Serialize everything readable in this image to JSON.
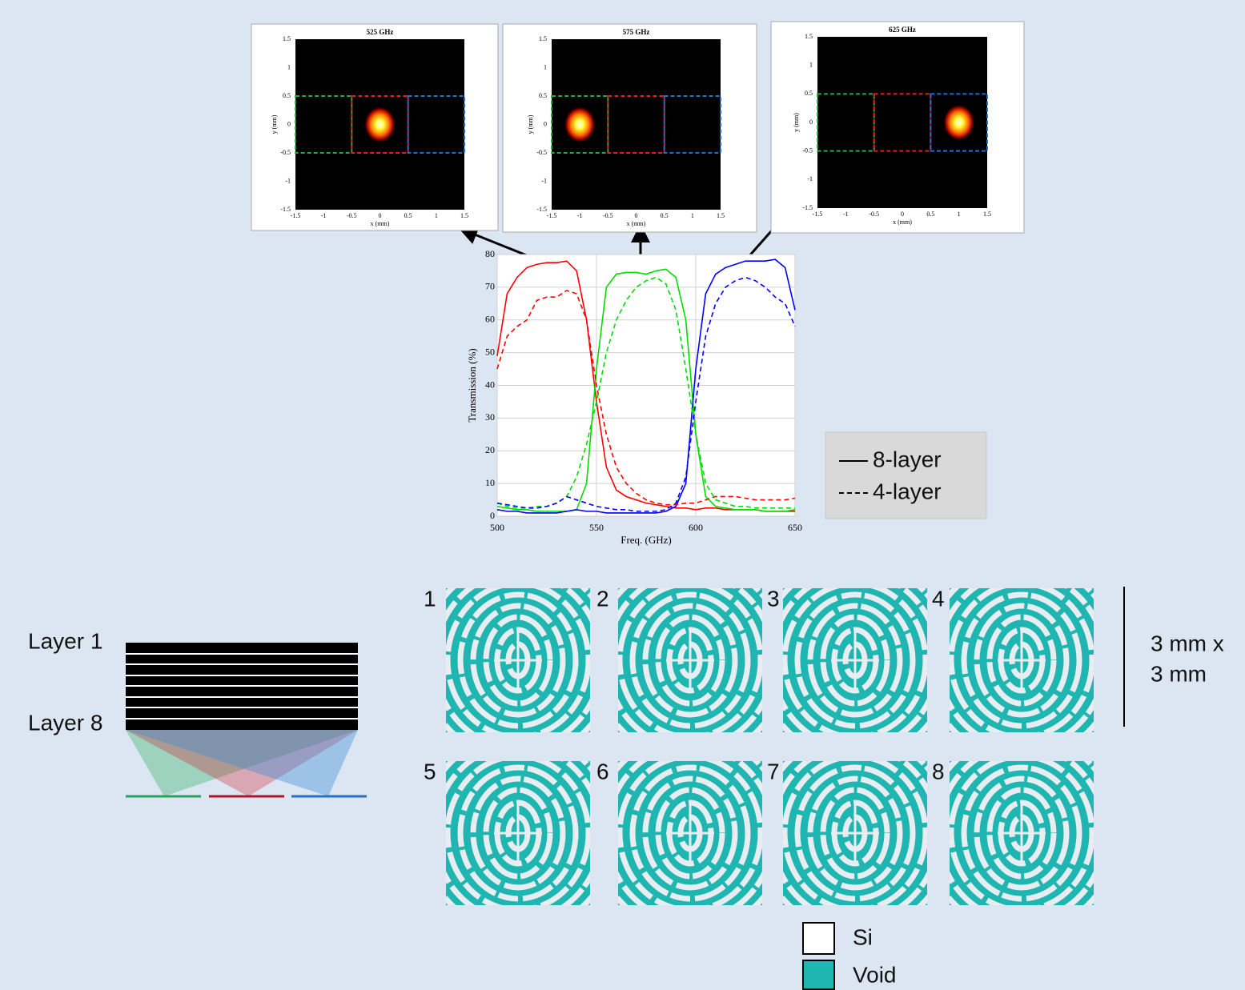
{
  "chart_data": [
    {
      "type": "line",
      "x_label": "Freq. (GHz)",
      "y_label": "Transmission (%)",
      "x": [
        500,
        505,
        510,
        515,
        520,
        525,
        530,
        535,
        540,
        545,
        550,
        555,
        560,
        565,
        570,
        575,
        580,
        585,
        590,
        595,
        600,
        605,
        610,
        615,
        620,
        625,
        630,
        635,
        640,
        645,
        650
      ],
      "series": [
        {
          "color": "#ff0000",
          "dash": "solid",
          "values": [
            49,
            68,
            73,
            76,
            77,
            77.5,
            77.5,
            78,
            75,
            60,
            35,
            15,
            8,
            6,
            5,
            4,
            3.5,
            3,
            2.5,
            2.5,
            2,
            2.5,
            2.5,
            2,
            2,
            2,
            2,
            1.5,
            1.5,
            1.5,
            1.5
          ]
        },
        {
          "color": "#00dd00",
          "dash": "solid",
          "values": [
            3,
            2.5,
            2,
            2,
            1.5,
            1.5,
            1.5,
            1.5,
            2,
            10,
            45,
            70,
            74,
            74.5,
            74.5,
            74,
            75,
            75.5,
            73,
            60,
            25,
            6,
            3,
            2.5,
            2,
            2,
            2,
            1.5,
            1.5,
            1.5,
            2
          ]
        },
        {
          "color": "#0000ff",
          "dash": "solid",
          "values": [
            2,
            1.5,
            1.5,
            1,
            1,
            1,
            1,
            1.5,
            2,
            1.5,
            1.5,
            1,
            1,
            1,
            1,
            1,
            1,
            1.5,
            3,
            10,
            45,
            68,
            74,
            76,
            77,
            78,
            78,
            78,
            78.5,
            76,
            63
          ]
        },
        {
          "color": "#ff0000",
          "dash": "dashed",
          "values": [
            45,
            55,
            58,
            60,
            66,
            67,
            67,
            69,
            68,
            60,
            40,
            25,
            15,
            10,
            7,
            5,
            4,
            3.5,
            3.5,
            4,
            4,
            5,
            6,
            6,
            6,
            5.5,
            5,
            5,
            5,
            5,
            5.5
          ]
        },
        {
          "color": "#00dd00",
          "dash": "dashed",
          "values": [
            4,
            3,
            2.5,
            2.5,
            3,
            3,
            4,
            6,
            12,
            22,
            35,
            50,
            60,
            66,
            70,
            72,
            73,
            71,
            63,
            45,
            25,
            10,
            5,
            4,
            3,
            3,
            2.5,
            2.5,
            2.5,
            2.5,
            2.5
          ]
        },
        {
          "color": "#0000ff",
          "dash": "dashed",
          "values": [
            4,
            3.5,
            3,
            2.5,
            2.5,
            3,
            4,
            6,
            5,
            4,
            3,
            2.5,
            2,
            2,
            1.5,
            1.5,
            1.5,
            2,
            4,
            12,
            35,
            55,
            65,
            70,
            72,
            73,
            72,
            70,
            67,
            65,
            58
          ]
        }
      ],
      "xlim": [
        500,
        650
      ],
      "xticks": [
        500,
        550,
        600,
        650
      ],
      "ylim": [
        0,
        80
      ],
      "yticks": [
        0,
        10,
        20,
        30,
        40,
        50,
        60,
        70,
        80
      ],
      "grid": true,
      "legend": [
        {
          "label": "8-layer",
          "dash": "solid"
        },
        {
          "label": "4-layer",
          "dash": "dashed"
        }
      ]
    },
    {
      "type": "heatmap",
      "title": "525 GHz",
      "x_label": "x (mm)",
      "y_label": "y (mm)",
      "x": [
        0
      ],
      "y": [
        0
      ],
      "xlim": [
        -1.5,
        1.5
      ],
      "xticks": [
        -1.5,
        -1,
        -0.5,
        0,
        0.5,
        1,
        1.5
      ],
      "ylim": [
        -1.5,
        1.5
      ],
      "yticks": [
        -1.5,
        -1,
        -0.5,
        0,
        0.5,
        1,
        1.5
      ]
    },
    {
      "type": "heatmap",
      "title": "575 GHz",
      "x_label": "x (mm)",
      "y_label": "y (mm)",
      "x": [
        -1
      ],
      "y": [
        0
      ],
      "xlim": [
        -1.5,
        1.5
      ],
      "xticks": [
        -1.5,
        -1,
        -0.5,
        0,
        0.5,
        1,
        1.5
      ],
      "ylim": [
        -1.5,
        1.5
      ],
      "yticks": [
        -1.5,
        -1,
        -0.5,
        0,
        0.5,
        1,
        1.5
      ]
    },
    {
      "type": "heatmap",
      "title": "625 GHz",
      "x_label": "x (mm)",
      "y_label": "y (mm)",
      "x": [
        1
      ],
      "y": [
        0
      ],
      "xlim": [
        -1.5,
        1.5
      ],
      "xticks": [
        -1.5,
        -1,
        -0.5,
        0,
        0.5,
        1,
        1.5
      ],
      "ylim": [
        -1.5,
        1.5
      ],
      "yticks": [
        -1.5,
        -1,
        -0.5,
        0,
        0.5,
        1,
        1.5
      ]
    }
  ],
  "stack_diagram": {
    "labels": [
      "Layer 1",
      "Layer 8"
    ]
  },
  "patterns": {
    "labels": [
      "1",
      "2",
      "3",
      "4",
      "5",
      "6",
      "7",
      "8"
    ],
    "scale_label": [
      "3 mm x",
      "3 mm"
    ]
  },
  "material_legend": [
    "Si",
    "Void"
  ]
}
